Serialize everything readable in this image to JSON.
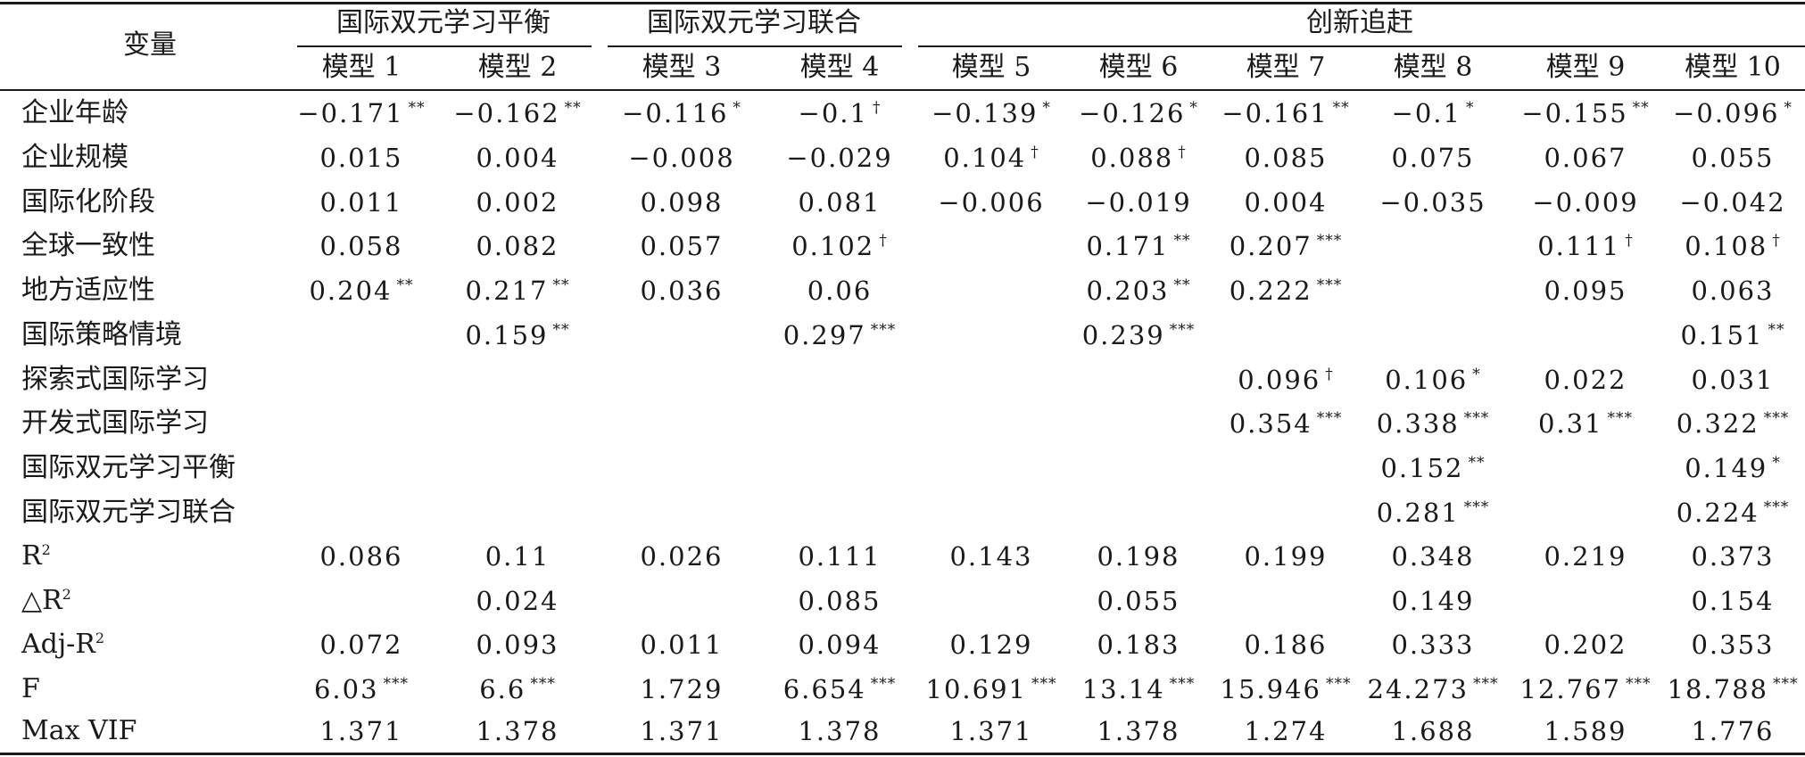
{
  "header": {
    "variable_label": "变量",
    "groups": [
      "国际双元学习平衡",
      "国际双元学习联合",
      "创新追赶"
    ],
    "models": [
      "模型 1",
      "模型 2",
      "模型 3",
      "模型 4",
      "模型 5",
      "模型 6",
      "模型 7",
      "模型 8",
      "模型 9",
      "模型 10"
    ]
  },
  "rows": [
    {
      "label": "企业年龄",
      "cells": [
        [
          "−0.171",
          "**"
        ],
        [
          "−0.162",
          "**"
        ],
        [
          "−0.116",
          "*"
        ],
        [
          "−0.1",
          "†"
        ],
        [
          "−0.139",
          "*"
        ],
        [
          "−0.126",
          "*"
        ],
        [
          "−0.161",
          "**"
        ],
        [
          "−0.1",
          "*"
        ],
        [
          "−0.155",
          "**"
        ],
        [
          "−0.096",
          "*"
        ]
      ]
    },
    {
      "label": "企业规模",
      "cells": [
        [
          "0.015",
          ""
        ],
        [
          "0.004",
          ""
        ],
        [
          "−0.008",
          ""
        ],
        [
          "−0.029",
          ""
        ],
        [
          "0.104",
          "†"
        ],
        [
          "0.088",
          "†"
        ],
        [
          "0.085",
          ""
        ],
        [
          "0.075",
          ""
        ],
        [
          "0.067",
          ""
        ],
        [
          "0.055",
          ""
        ]
      ]
    },
    {
      "label": "国际化阶段",
      "cells": [
        [
          "0.011",
          ""
        ],
        [
          "0.002",
          ""
        ],
        [
          "0.098",
          ""
        ],
        [
          "0.081",
          ""
        ],
        [
          "−0.006",
          ""
        ],
        [
          "−0.019",
          ""
        ],
        [
          "0.004",
          ""
        ],
        [
          "−0.035",
          ""
        ],
        [
          "−0.009",
          ""
        ],
        [
          "−0.042",
          ""
        ]
      ]
    },
    {
      "label": "全球一致性",
      "cells": [
        [
          "0.058",
          ""
        ],
        [
          "0.082",
          ""
        ],
        [
          "0.057",
          ""
        ],
        [
          "0.102",
          "†"
        ],
        [
          "",
          ""
        ],
        [
          "0.171",
          "**"
        ],
        [
          "0.207",
          "***"
        ],
        [
          "",
          ""
        ],
        [
          "0.111",
          "†"
        ],
        [
          "0.108",
          "†"
        ]
      ]
    },
    {
      "label": "地方适应性",
      "cells": [
        [
          "0.204",
          "**"
        ],
        [
          "0.217",
          "**"
        ],
        [
          "0.036",
          ""
        ],
        [
          "0.06",
          ""
        ],
        [
          "",
          ""
        ],
        [
          "0.203",
          "**"
        ],
        [
          "0.222",
          "***"
        ],
        [
          "",
          ""
        ],
        [
          "0.095",
          ""
        ],
        [
          "0.063",
          ""
        ]
      ]
    },
    {
      "label": "国际策略情境",
      "cells": [
        [
          "",
          ""
        ],
        [
          "0.159",
          "**"
        ],
        [
          "",
          ""
        ],
        [
          "0.297",
          "***"
        ],
        [
          "",
          ""
        ],
        [
          "0.239",
          "***"
        ],
        [
          "",
          ""
        ],
        [
          "",
          ""
        ],
        [
          "",
          ""
        ],
        [
          "0.151",
          "**"
        ]
      ]
    },
    {
      "label": "探索式国际学习",
      "cells": [
        [
          "",
          ""
        ],
        [
          "",
          ""
        ],
        [
          "",
          ""
        ],
        [
          "",
          ""
        ],
        [
          "",
          ""
        ],
        [
          "",
          ""
        ],
        [
          "0.096",
          "†"
        ],
        [
          "0.106",
          "*"
        ],
        [
          "0.022",
          ""
        ],
        [
          "0.031",
          ""
        ]
      ]
    },
    {
      "label": "开发式国际学习",
      "cells": [
        [
          "",
          ""
        ],
        [
          "",
          ""
        ],
        [
          "",
          ""
        ],
        [
          "",
          ""
        ],
        [
          "",
          ""
        ],
        [
          "",
          ""
        ],
        [
          "0.354",
          "***"
        ],
        [
          "0.338",
          "***"
        ],
        [
          "0.31",
          "***"
        ],
        [
          "0.322",
          "***"
        ]
      ]
    },
    {
      "label": "国际双元学习平衡",
      "cells": [
        [
          "",
          ""
        ],
        [
          "",
          ""
        ],
        [
          "",
          ""
        ],
        [
          "",
          ""
        ],
        [
          "",
          ""
        ],
        [
          "",
          ""
        ],
        [
          "",
          ""
        ],
        [
          "0.152",
          "**"
        ],
        [
          "",
          ""
        ],
        [
          "0.149",
          "*"
        ]
      ]
    },
    {
      "label": "国际双元学习联合",
      "cells": [
        [
          "",
          ""
        ],
        [
          "",
          ""
        ],
        [
          "",
          ""
        ],
        [
          "",
          ""
        ],
        [
          "",
          ""
        ],
        [
          "",
          ""
        ],
        [
          "",
          ""
        ],
        [
          "0.281",
          "***"
        ],
        [
          "",
          ""
        ],
        [
          "0.224",
          "***"
        ]
      ]
    },
    {
      "label": "R",
      "label_sup": "2",
      "cells": [
        [
          "0.086",
          ""
        ],
        [
          "0.11",
          ""
        ],
        [
          "0.026",
          ""
        ],
        [
          "0.111",
          ""
        ],
        [
          "0.143",
          ""
        ],
        [
          "0.198",
          ""
        ],
        [
          "0.199",
          ""
        ],
        [
          "0.348",
          ""
        ],
        [
          "0.219",
          ""
        ],
        [
          "0.373",
          ""
        ]
      ]
    },
    {
      "label": "△R",
      "label_sup": "2",
      "cells": [
        [
          "",
          ""
        ],
        [
          "0.024",
          ""
        ],
        [
          "",
          ""
        ],
        [
          "0.085",
          ""
        ],
        [
          "",
          ""
        ],
        [
          "0.055",
          ""
        ],
        [
          "",
          ""
        ],
        [
          "0.149",
          ""
        ],
        [
          "",
          ""
        ],
        [
          "0.154",
          ""
        ]
      ]
    },
    {
      "label": "Adj-R",
      "label_sup": "2",
      "cells": [
        [
          "0.072",
          ""
        ],
        [
          "0.093",
          ""
        ],
        [
          "0.011",
          ""
        ],
        [
          "0.094",
          ""
        ],
        [
          "0.129",
          ""
        ],
        [
          "0.183",
          ""
        ],
        [
          "0.186",
          ""
        ],
        [
          "0.333",
          ""
        ],
        [
          "0.202",
          ""
        ],
        [
          "0.353",
          ""
        ]
      ]
    },
    {
      "label": "F",
      "cells": [
        [
          "6.03",
          "***"
        ],
        [
          "6.6",
          "***"
        ],
        [
          "1.729",
          ""
        ],
        [
          "6.654",
          "***"
        ],
        [
          "10.691",
          "***"
        ],
        [
          "13.14",
          "***"
        ],
        [
          "15.946",
          "***"
        ],
        [
          "24.273",
          "***"
        ],
        [
          "12.767",
          "***"
        ],
        [
          "18.788",
          "***"
        ]
      ]
    },
    {
      "label": "Max VIF",
      "cells": [
        [
          "1.371",
          ""
        ],
        [
          "1.378",
          ""
        ],
        [
          "1.371",
          ""
        ],
        [
          "1.378",
          ""
        ],
        [
          "1.371",
          ""
        ],
        [
          "1.378",
          ""
        ],
        [
          "1.274",
          ""
        ],
        [
          "1.688",
          ""
        ],
        [
          "1.589",
          ""
        ],
        [
          "1.776",
          ""
        ]
      ]
    }
  ]
}
